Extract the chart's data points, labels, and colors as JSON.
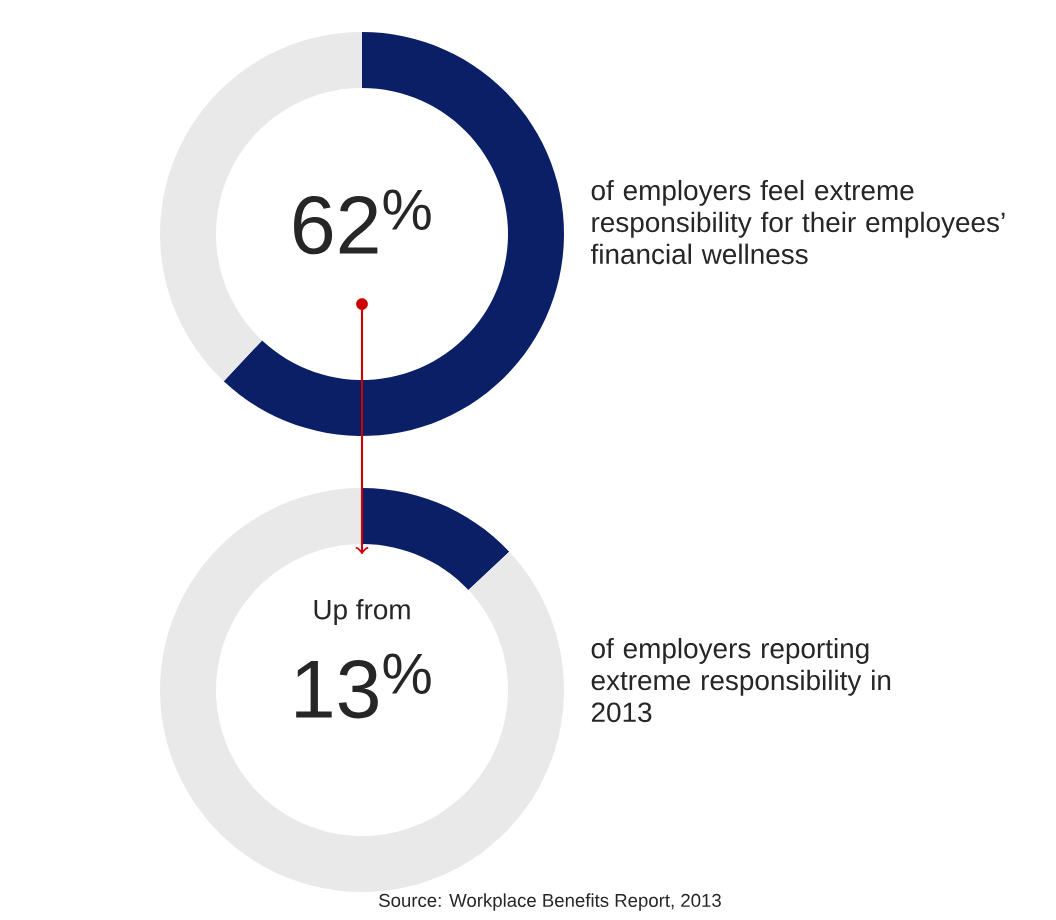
{
  "chart_data": [
    {
      "type": "donut",
      "categories": [
        null,
        null
      ],
      "values": [
        62,
        38
      ],
      "colors": [
        "#0a1f66",
        "#e9e9e9"
      ],
      "annotations": [
        "62$^{%}$",
        "of employers feel extreme responsibility for their employees’ financial wellness"
      ]
    },
    {
      "type": "donut",
      "categories": [
        null,
        null
      ],
      "values": [
        13,
        87
      ],
      "colors": [
        "#0a1f66",
        "#e9e9e9"
      ],
      "annotations": [
        "Up from",
        "13$^{%}$",
        "of employers reporting extreme responsibility in 2013",
        "Source: Workplace Benefits Report, 2013"
      ]
    }
  ]
}
